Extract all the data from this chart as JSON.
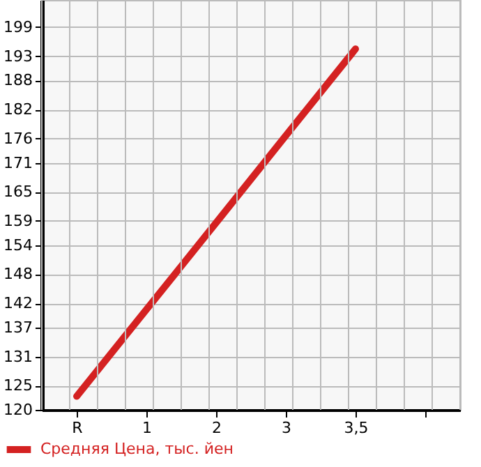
{
  "chart_data": {
    "type": "line",
    "categories": [
      "R",
      "1",
      "2",
      "3",
      "3,5",
      null
    ],
    "series": [
      {
        "name": "Средняя Цена, тыс. йен",
        "color": "#d42121",
        "values": [
          122.8,
          140.7,
          158.6,
          176.6,
          194.5,
          null
        ]
      }
    ],
    "ylim": [
      120,
      204.6
    ],
    "yticks": [
      120,
      125,
      131,
      137,
      142,
      148,
      154,
      159,
      165,
      171,
      176,
      182,
      188,
      193,
      199
    ],
    "grid": true,
    "legend": "bottom left",
    "marker": "none",
    "line_style": "solid"
  }
}
